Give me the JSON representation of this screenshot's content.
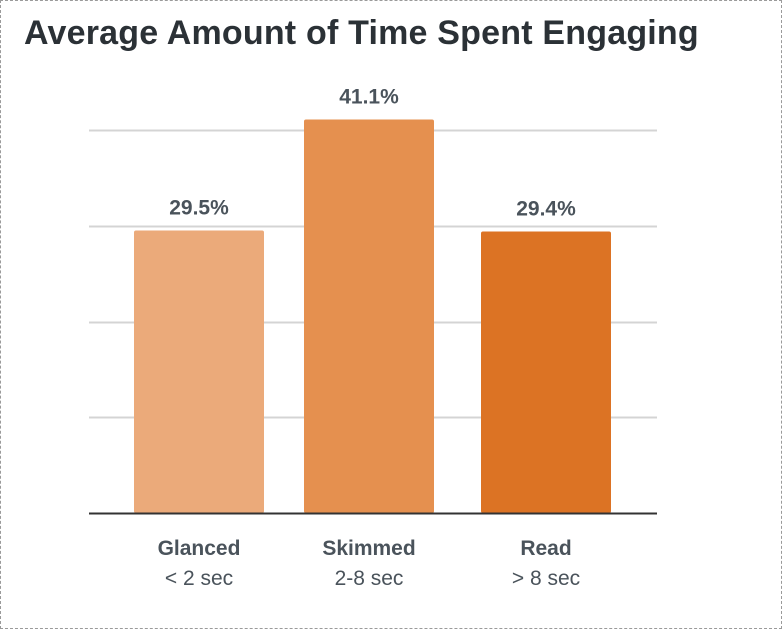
{
  "chart_data": {
    "type": "bar",
    "title": "Average Amount of Time Spent Engaging",
    "xlabel": "",
    "ylabel": "",
    "categories": [
      "Glanced",
      "Skimmed",
      "Read"
    ],
    "category_sublabels": [
      "< 2 sec",
      "2-8 sec",
      "> 8 sec"
    ],
    "values": [
      29.5,
      41.1,
      29.4
    ],
    "data_labels": [
      "29.5%",
      "41.1%",
      "29.4%"
    ],
    "ylim": [
      0,
      40
    ],
    "gridlines_at": [
      10,
      20,
      30,
      40
    ],
    "grid": true,
    "legend": "none",
    "colors": [
      "#EBAA7A",
      "#E5904F",
      "#DC7324"
    ],
    "gridline_color": "#D4D4D4",
    "axis_color": "#333333"
  }
}
